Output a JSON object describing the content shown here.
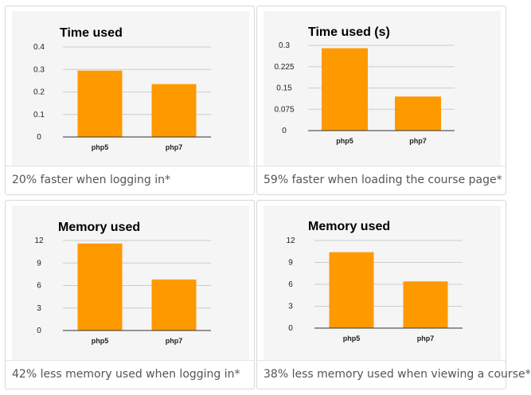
{
  "colors": {
    "bar": "#ff9900",
    "grid": "#cccccc",
    "axis": "#333333",
    "text": "#222222"
  },
  "cards": [
    {
      "caption": "20% faster when logging in*"
    },
    {
      "caption": "59% faster when loading the course page*"
    },
    {
      "caption": "42% less memory used when logging in*"
    },
    {
      "caption": "38% less memory used when viewing a course*"
    }
  ],
  "chart_data": [
    {
      "type": "bar",
      "title": "Time used",
      "xlabel": "",
      "ylabel": "",
      "categories": [
        "php5",
        "php7"
      ],
      "values": [
        0.295,
        0.235
      ],
      "ylim": [
        0,
        0.4
      ],
      "yticks": [
        "0",
        "0.1",
        "0.2",
        "0.3",
        "0.4"
      ],
      "grid": true,
      "legend": "none"
    },
    {
      "type": "bar",
      "title": "Time used (s)",
      "xlabel": "",
      "ylabel": "",
      "categories": [
        "php5",
        "php7"
      ],
      "values": [
        0.29,
        0.12
      ],
      "ylim": [
        0,
        0.3
      ],
      "yticks": [
        "0",
        "0.075",
        "0.15",
        "0.225",
        "0.3"
      ],
      "grid": true,
      "legend": "none"
    },
    {
      "type": "bar",
      "title": "Memory used",
      "xlabel": "",
      "ylabel": "",
      "categories": [
        "php5",
        "php7"
      ],
      "values": [
        11.6,
        6.8
      ],
      "ylim": [
        0,
        12
      ],
      "yticks": [
        "0",
        "3",
        "6",
        "9",
        "12"
      ],
      "grid": true,
      "legend": "none"
    },
    {
      "type": "bar",
      "title": "Memory used",
      "xlabel": "",
      "ylabel": "",
      "categories": [
        "php5",
        "php7"
      ],
      "values": [
        10.4,
        6.4
      ],
      "ylim": [
        0,
        12
      ],
      "yticks": [
        "0",
        "3",
        "6",
        "9",
        "12"
      ],
      "grid": true,
      "legend": "none"
    }
  ]
}
